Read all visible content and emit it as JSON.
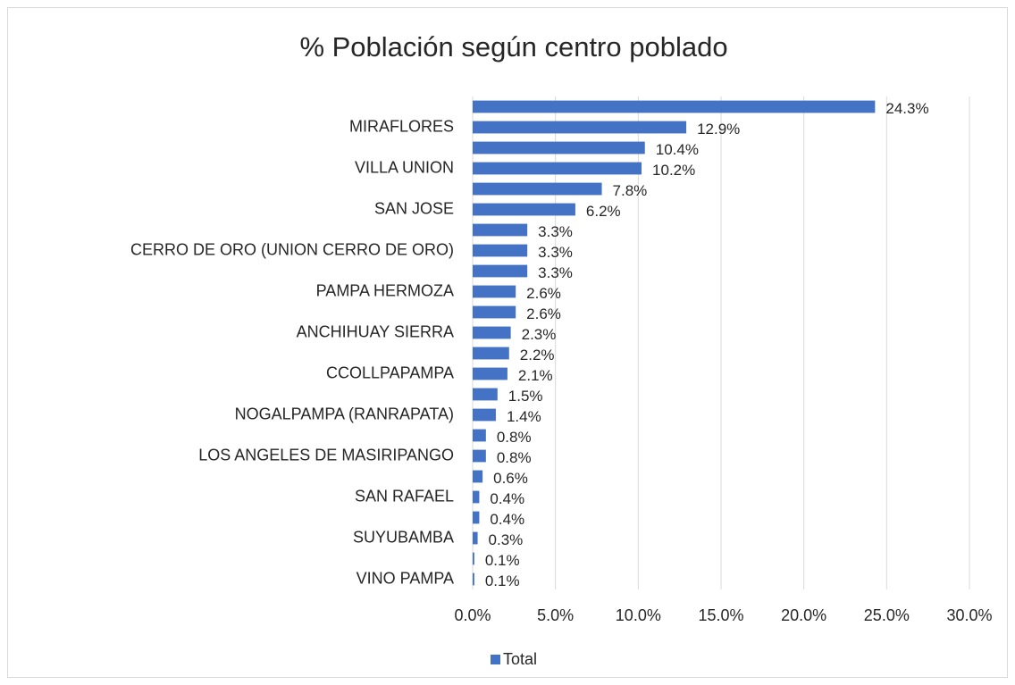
{
  "chart_data": {
    "type": "barh",
    "title": "% Población según centro poblado",
    "categories": [
      null,
      "MIRAFLORES",
      null,
      "VILLA UNION",
      null,
      "SAN JOSE",
      null,
      "CERRO DE ORO (UNION CERRO DE ORO)",
      null,
      "PAMPA HERMOZA",
      null,
      "ANCHIHUAY SIERRA",
      null,
      "CCOLLPAPAMPA",
      null,
      "NOGALPAMPA (RANRAPATA)",
      null,
      "LOS ANGELES DE MASIRIPANGO",
      null,
      "SAN RAFAEL",
      null,
      "SUYUBAMBA",
      null,
      "VINO PAMPA"
    ],
    "series": [
      {
        "name": "Total",
        "color": "#4472c4",
        "values": [
          24.3,
          12.9,
          10.4,
          10.2,
          7.8,
          6.2,
          3.3,
          3.3,
          3.3,
          2.6,
          2.6,
          2.3,
          2.2,
          2.1,
          1.5,
          1.4,
          0.8,
          0.8,
          0.6,
          0.4,
          0.4,
          0.3,
          0.1,
          0.1
        ],
        "value_labels": [
          "24.3%",
          "12.9%",
          "10.4%",
          "10.2%",
          "7.8%",
          "6.2%",
          "3.3%",
          "3.3%",
          "3.3%",
          "2.6%",
          "2.6%",
          "2.3%",
          "2.2%",
          "2.1%",
          "1.5%",
          "1.4%",
          "0.8%",
          "0.8%",
          "0.6%",
          "0.4%",
          "0.4%",
          "0.3%",
          "0.1%",
          "0.1%"
        ]
      }
    ],
    "xlim": [
      0,
      30
    ],
    "xticks": [
      {
        "value": 0,
        "label": "0.0%"
      },
      {
        "value": 5,
        "label": "5.0%"
      },
      {
        "value": 10,
        "label": "10.0%"
      },
      {
        "value": 15,
        "label": "15.0%"
      },
      {
        "value": 20,
        "label": "20.0%"
      },
      {
        "value": 25,
        "label": "25.0%"
      },
      {
        "value": 30,
        "label": "30.0%"
      }
    ],
    "grid": true,
    "legend": "bottom"
  }
}
